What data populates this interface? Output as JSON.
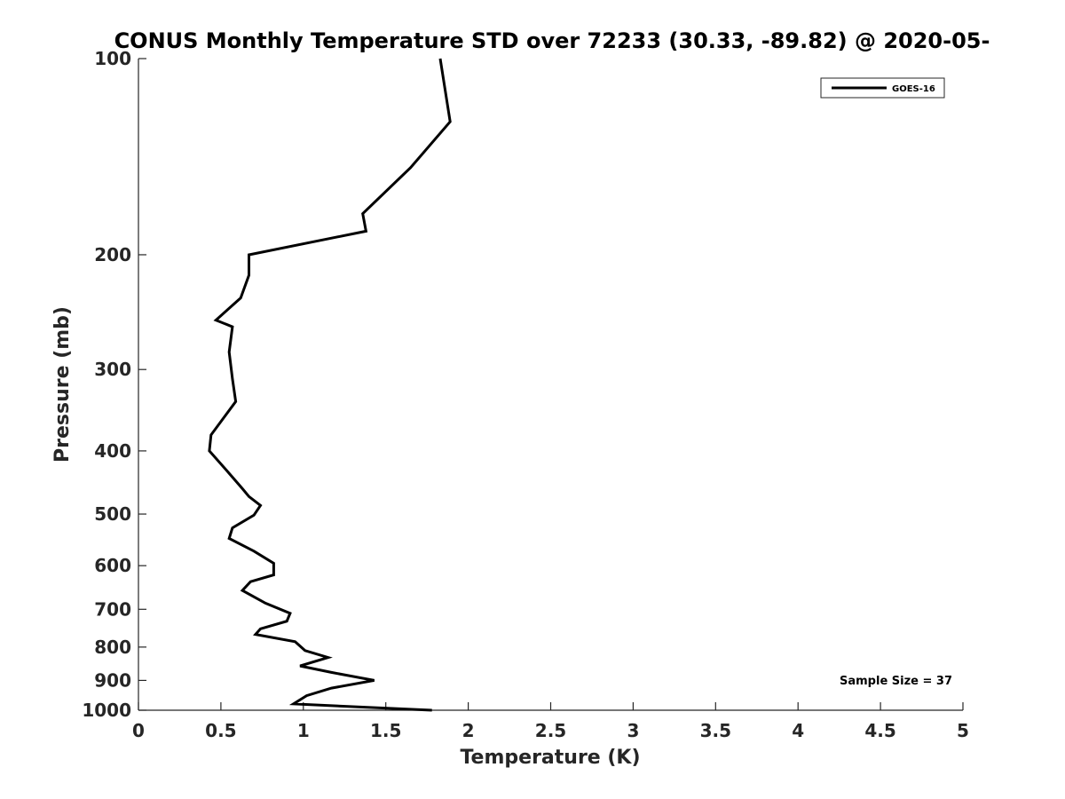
{
  "chart_data": {
    "type": "line",
    "title": "CONUS Monthly Temperature STD over 72233 (30.33, -89.82) @ 2020-05-",
    "xlabel": "Temperature (K)",
    "ylabel": "Pressure (mb)",
    "xlim": [
      0,
      5
    ],
    "ylim": [
      100,
      1000
    ],
    "yscale": "log",
    "yreversed": true,
    "grid": false,
    "legend_position": "top-right",
    "x_ticks": [
      0,
      0.5,
      1,
      1.5,
      2,
      2.5,
      3,
      3.5,
      4,
      4.5,
      5
    ],
    "x_tick_labels": [
      "0",
      "0.5",
      "1",
      "1.5",
      "2",
      "2.5",
      "3",
      "3.5",
      "4",
      "4.5",
      "5"
    ],
    "y_ticks": [
      100,
      200,
      300,
      400,
      500,
      600,
      700,
      800,
      900,
      1000
    ],
    "y_tick_labels": [
      "100",
      "200",
      "300",
      "400",
      "500",
      "600",
      "700",
      "800",
      "900",
      "1000"
    ],
    "series": [
      {
        "name": "GOES-16",
        "color": "#000000",
        "x": [
          1.83,
          1.89,
          1.65,
          1.36,
          1.38,
          0.67,
          0.67,
          0.62,
          0.47,
          0.57,
          0.55,
          0.57,
          0.59,
          0.52,
          0.44,
          0.43,
          0.54,
          0.63,
          0.67,
          0.74,
          0.7,
          0.57,
          0.55,
          0.7,
          0.82,
          0.82,
          0.68,
          0.63,
          0.77,
          0.92,
          0.9,
          0.74,
          0.71,
          0.95,
          1.01,
          1.15,
          0.98,
          1.17,
          1.43,
          1.17,
          1.02,
          0.94,
          1.78
        ],
        "y": [
          100,
          125,
          147,
          173,
          184,
          200,
          215,
          233,
          252,
          258,
          282,
          310,
          336,
          355,
          378,
          400,
          430,
          457,
          470,
          485,
          502,
          525,
          545,
          570,
          595,
          620,
          635,
          655,
          685,
          710,
          730,
          750,
          765,
          785,
          810,
          830,
          855,
          875,
          900,
          925,
          950,
          978,
          1000
        ]
      }
    ],
    "annotations": [
      {
        "text": "Sample Size = 37"
      }
    ]
  }
}
